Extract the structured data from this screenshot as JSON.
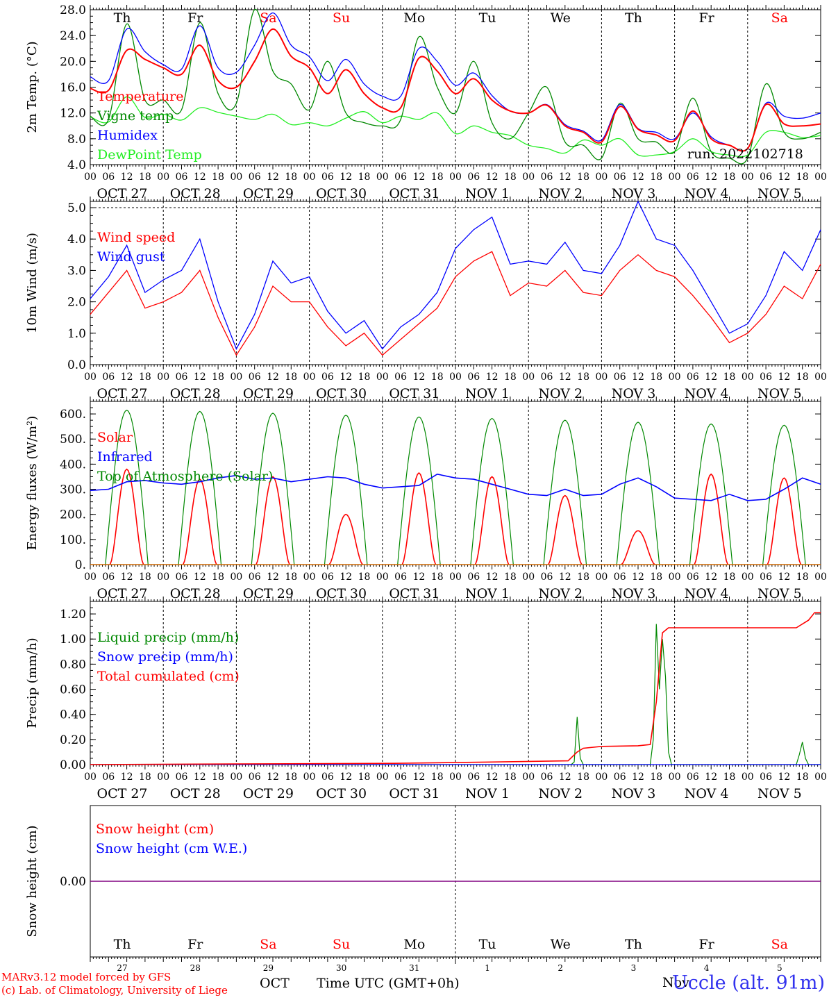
{
  "colors": {
    "red": "#ff0000",
    "blue": "#0000ff",
    "darkgreen": "#008800",
    "lightgreen": "#22ee22",
    "purple": "#800080",
    "weekend": "#ff0000"
  },
  "days": [
    "Th",
    "Fr",
    "Sa",
    "Su",
    "Mo",
    "Tu",
    "We",
    "Th",
    "Fr",
    "Sa"
  ],
  "weekend_days": [
    "Sa",
    "Su"
  ],
  "date_labels": [
    "OCT 27",
    "OCT 28",
    "OCT 29",
    "OCT 30",
    "OCT 31",
    "NOV  1",
    "NOV  2",
    "NOV  3",
    "NOV  4",
    "NOV  5"
  ],
  "hour_labels": [
    "00",
    "06",
    "12",
    "18"
  ],
  "day_numbers": [
    "27",
    "28",
    "29",
    "30",
    "31",
    "1",
    "2",
    "3",
    "4",
    "5"
  ],
  "footer": {
    "model_line": "MARv3.12 model forced by GFS",
    "lab_line": "(c) Lab. of Climatology, University of Liege",
    "oct_label": "OCT",
    "time_label": "Time UTC (GMT+0h)",
    "nov_label": "Nov",
    "station": "Uccle (alt. 91m)"
  },
  "chart_data": [
    {
      "type": "line",
      "ylabel": "2m Temp. (°C)",
      "ylim": [
        4,
        28
      ],
      "yticks": [
        "4.0",
        "8.0",
        "12.0",
        "16.0",
        "20.0",
        "24.0",
        "28.0"
      ],
      "annotation": "run: 2022102718",
      "x_hours": [
        0,
        6,
        12,
        18,
        24,
        30,
        36,
        42,
        48,
        54,
        60,
        66,
        72,
        78,
        84,
        90,
        96,
        102,
        108,
        114,
        120,
        126,
        132,
        138,
        144,
        150,
        156,
        162,
        168,
        174,
        180,
        186,
        192,
        198,
        204,
        210,
        216,
        222,
        228,
        234,
        240
      ],
      "series": [
        {
          "name": "Temperature",
          "color": "red",
          "values": [
            15.8,
            15.5,
            21.7,
            20.3,
            19.0,
            18.0,
            22.5,
            17.0,
            16.0,
            20.0,
            25.0,
            20.8,
            19.0,
            15.0,
            18.7,
            15.0,
            12.8,
            12.8,
            20.5,
            18.5,
            15.0,
            17.3,
            14.0,
            12.3,
            12.0,
            13.2,
            10.0,
            9.0,
            7.5,
            13.0,
            9.5,
            8.6,
            7.7,
            12.3,
            8.0,
            7.0,
            6.5,
            13.3,
            10.3,
            10.0,
            10.3
          ]
        },
        {
          "name": "Vigne temp",
          "color": "darkgreen",
          "values": [
            11.5,
            11.0,
            25.8,
            14.0,
            14.0,
            12.5,
            26.0,
            15.0,
            13.5,
            28.0,
            18.5,
            16.5,
            12.5,
            20.0,
            12.0,
            10.5,
            10.0,
            11.0,
            23.8,
            16.0,
            12.0,
            20.0,
            10.5,
            8.0,
            12.0,
            16.0,
            7.5,
            7.0,
            5.0,
            13.5,
            8.0,
            7.5,
            6.0,
            14.3,
            6.0,
            5.0,
            5.0,
            16.5,
            9.0,
            8.0,
            9.0
          ]
        },
        {
          "name": "Humidex",
          "color": "blue",
          "values": [
            17.6,
            17.0,
            25.0,
            21.5,
            19.5,
            18.8,
            25.5,
            19.0,
            18.3,
            22.5,
            27.5,
            22.5,
            20.7,
            17.0,
            20.3,
            16.5,
            14.6,
            14.6,
            22.0,
            20.0,
            16.3,
            18.2,
            14.7,
            12.3,
            12.0,
            13.3,
            10.2,
            9.2,
            7.8,
            13.3,
            9.6,
            9.0,
            8.0,
            12.0,
            8.3,
            7.0,
            6.5,
            13.5,
            11.5,
            11.2,
            12.0
          ]
        },
        {
          "name": "DewPoint Temp",
          "color": "lightgreen",
          "values": [
            11.4,
            10.6,
            14.5,
            11.3,
            11.8,
            10.9,
            12.8,
            12.1,
            11.5,
            11.0,
            11.8,
            10.2,
            10.5,
            10.0,
            11.2,
            12.2,
            10.5,
            11.5,
            11.0,
            12.0,
            8.8,
            10.0,
            9.0,
            8.5,
            7.0,
            6.5,
            5.8,
            7.8,
            7.0,
            8.0,
            5.5,
            5.5,
            6.0,
            8.0,
            6.0,
            5.5,
            5.5,
            9.0,
            9.0,
            8.2,
            8.5
          ]
        }
      ]
    },
    {
      "type": "line",
      "ylabel": "10m Wind (m/s)",
      "ylim": [
        0,
        5.2
      ],
      "yticks": [
        "0.0",
        "1.0",
        "2.0",
        "3.0",
        "4.0",
        "5.0"
      ],
      "x_hours": [
        0,
        6,
        12,
        18,
        24,
        30,
        36,
        42,
        48,
        54,
        60,
        66,
        72,
        78,
        84,
        90,
        96,
        102,
        108,
        114,
        120,
        126,
        132,
        138,
        144,
        150,
        156,
        162,
        168,
        174,
        180,
        186,
        192,
        198,
        204,
        210,
        216,
        222,
        228,
        234,
        240
      ],
      "series": [
        {
          "name": "Wind speed",
          "color": "red",
          "values": [
            1.6,
            2.3,
            3.0,
            1.8,
            2.0,
            2.3,
            3.0,
            1.5,
            0.3,
            1.2,
            2.5,
            2.0,
            2.0,
            1.2,
            0.6,
            1.0,
            0.3,
            0.8,
            1.3,
            1.8,
            2.8,
            3.3,
            3.6,
            2.2,
            2.6,
            2.5,
            3.0,
            2.3,
            2.2,
            3.0,
            3.5,
            3.0,
            2.8,
            2.2,
            1.5,
            0.7,
            1.0,
            1.6,
            2.5,
            2.1,
            3.2
          ]
        },
        {
          "name": "Wind gust",
          "color": "blue",
          "values": [
            2.1,
            2.8,
            3.8,
            2.3,
            2.7,
            3.0,
            4.0,
            2.0,
            0.5,
            1.6,
            3.3,
            2.6,
            2.8,
            1.7,
            1.0,
            1.4,
            0.5,
            1.2,
            1.6,
            2.3,
            3.7,
            4.3,
            4.7,
            3.2,
            3.3,
            3.2,
            3.9,
            3.0,
            2.9,
            3.8,
            5.2,
            4.0,
            3.8,
            3.0,
            2.0,
            1.0,
            1.3,
            2.2,
            3.6,
            3.0,
            4.3
          ]
        }
      ]
    },
    {
      "type": "line",
      "ylabel": "Energy fluxes (W/m²)",
      "ylim": [
        0,
        650
      ],
      "yticks": [
        "0.",
        "100.",
        "200.",
        "300.",
        "400.",
        "500.",
        "600."
      ],
      "solar_peaks": [
        380,
        340,
        350,
        200,
        365,
        350,
        275,
        135,
        360,
        345
      ],
      "toa_peaks": [
        615,
        610,
        603,
        595,
        588,
        582,
        575,
        567,
        560,
        555
      ],
      "infrared": {
        "x_hours": [
          0,
          6,
          12,
          18,
          24,
          30,
          36,
          42,
          48,
          54,
          60,
          66,
          72,
          78,
          84,
          90,
          96,
          102,
          108,
          114,
          120,
          126,
          132,
          138,
          144,
          150,
          156,
          162,
          168,
          174,
          180,
          186,
          192,
          198,
          204,
          210,
          216,
          222,
          228,
          234,
          240
        ],
        "values": [
          295,
          300,
          330,
          335,
          325,
          320,
          330,
          345,
          355,
          340,
          345,
          330,
          340,
          350,
          345,
          320,
          305,
          310,
          315,
          360,
          345,
          340,
          320,
          300,
          280,
          275,
          300,
          275,
          280,
          320,
          345,
          310,
          265,
          260,
          255,
          280,
          255,
          260,
          300,
          345,
          320
        ]
      },
      "series": [
        {
          "name": "Solar",
          "color": "red"
        },
        {
          "name": "Infrared",
          "color": "blue"
        },
        {
          "name": "Top of Atmosphere (Solar)",
          "color": "darkgreen"
        }
      ]
    },
    {
      "type": "line",
      "ylabel": "Precip (mm/h)",
      "ylim": [
        0,
        1.3
      ],
      "yticks": [
        "0.00",
        "0.20",
        "0.40",
        "0.60",
        "0.80",
        "1.00",
        "1.20"
      ],
      "series": [
        {
          "name": "Liquid precip (mm/h)",
          "color": "darkgreen",
          "points": [
            [
              0,
              0
            ],
            [
              158,
              0
            ],
            [
              159,
              0.02
            ],
            [
              160,
              0.38
            ],
            [
              161,
              0.05
            ],
            [
              162,
              0.0
            ],
            [
              184,
              0.0
            ],
            [
              185,
              0.2
            ],
            [
              186,
              1.12
            ],
            [
              187,
              0.6
            ],
            [
              188,
              1.0
            ],
            [
              189,
              0.7
            ],
            [
              190,
              0.1
            ],
            [
              191,
              0.0
            ],
            [
              232,
              0.0
            ],
            [
              233,
              0.08
            ],
            [
              234,
              0.18
            ],
            [
              235,
              0.05
            ],
            [
              236,
              0.0
            ],
            [
              240,
              0.0
            ]
          ]
        },
        {
          "name": "Snow precip (mm/h)",
          "color": "blue",
          "points": [
            [
              0,
              0
            ],
            [
              240,
              0
            ]
          ]
        },
        {
          "name": "Total cumulated (cm)",
          "color": "red",
          "points": [
            [
              0,
              0
            ],
            [
              48,
              0.005
            ],
            [
              100,
              0.01
            ],
            [
              130,
              0.02
            ],
            [
              157,
              0.03
            ],
            [
              160,
              0.1
            ],
            [
              162,
              0.13
            ],
            [
              168,
              0.145
            ],
            [
              180,
              0.15
            ],
            [
              184,
              0.16
            ],
            [
              186,
              0.5
            ],
            [
              188,
              1.05
            ],
            [
              190,
              1.09
            ],
            [
              232,
              1.09
            ],
            [
              236,
              1.15
            ],
            [
              238,
              1.21
            ],
            [
              240,
              1.21
            ]
          ]
        }
      ]
    },
    {
      "type": "line",
      "ylabel": "Snow height (cm)",
      "ylim": [
        -1,
        1
      ],
      "yticks": [
        "0.00"
      ],
      "series": [
        {
          "name": "Snow height (cm)",
          "color": "red",
          "values": [
            0,
            0
          ]
        },
        {
          "name": "Snow height (cm W.E.)",
          "color": "blue",
          "values": [
            0,
            0
          ]
        }
      ]
    }
  ]
}
